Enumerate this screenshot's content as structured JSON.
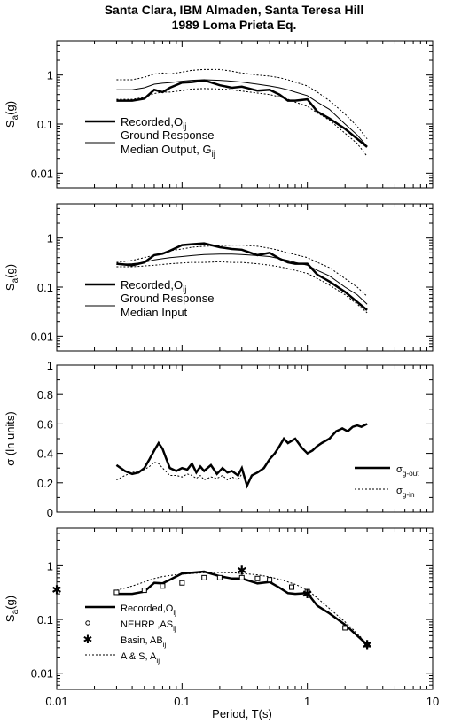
{
  "title_line1": "Santa Clara, IBM Almaden, Santa Teresa Hill",
  "title_line2": "1989 Loma Prieta Eq.",
  "shared_xlabel": "Period, T(s)",
  "chart_data": [
    {
      "type": "line",
      "xscale": "log",
      "yscale": "log",
      "xlim": [
        0.01,
        10
      ],
      "ylim": [
        0.005,
        5
      ],
      "x_ticks": [
        "0.01",
        "0.1",
        "1",
        "10"
      ],
      "y_ticks": [
        "0.01",
        "0.1",
        "1"
      ],
      "ylabel": "S",
      "ylabel_sub": "a",
      "ylabel_suffix": "(g)",
      "legend": {
        "placement": "lower-left",
        "items": [
          {
            "label": "Recorded,O",
            "sub": "ij",
            "style": "thick"
          },
          {
            "label": "Ground Response",
            "label2": "Median Output, G",
            "sub": "ij",
            "style": "thin"
          }
        ]
      },
      "series": [
        {
          "style": "thick",
          "x": [
            0.03,
            0.04,
            0.05,
            0.06,
            0.07,
            0.08,
            0.1,
            0.12,
            0.15,
            0.2,
            0.25,
            0.3,
            0.4,
            0.5,
            0.6,
            0.7,
            0.8,
            1.0,
            1.2,
            1.5,
            2.0,
            2.5,
            3.0
          ],
          "y": [
            0.3,
            0.3,
            0.33,
            0.5,
            0.45,
            0.55,
            0.7,
            0.72,
            0.78,
            0.62,
            0.55,
            0.58,
            0.48,
            0.5,
            0.4,
            0.3,
            0.3,
            0.32,
            0.18,
            0.13,
            0.08,
            0.05,
            0.034
          ]
        },
        {
          "style": "thin",
          "x": [
            0.03,
            0.04,
            0.05,
            0.06,
            0.07,
            0.08,
            0.1,
            0.12,
            0.15,
            0.2,
            0.25,
            0.3,
            0.4,
            0.5,
            0.6,
            0.7,
            0.8,
            1.0,
            1.2,
            1.5,
            2.0,
            2.5,
            3.0
          ],
          "y": [
            0.5,
            0.5,
            0.55,
            0.65,
            0.68,
            0.7,
            0.75,
            0.78,
            0.8,
            0.78,
            0.75,
            0.72,
            0.65,
            0.6,
            0.55,
            0.5,
            0.45,
            0.38,
            0.28,
            0.2,
            0.1,
            0.06,
            0.035
          ]
        },
        {
          "style": "dotted",
          "x": [
            0.03,
            0.04,
            0.05,
            0.06,
            0.07,
            0.08,
            0.1,
            0.12,
            0.15,
            0.2,
            0.25,
            0.3,
            0.4,
            0.5,
            0.6,
            0.7,
            0.8,
            1.0,
            1.2,
            1.5,
            2.0,
            2.5,
            3.0
          ],
          "y": [
            0.8,
            0.8,
            0.9,
            1.05,
            1.1,
            1.05,
            1.15,
            1.25,
            1.3,
            1.3,
            1.2,
            1.1,
            1.0,
            0.95,
            0.88,
            0.8,
            0.72,
            0.6,
            0.45,
            0.3,
            0.16,
            0.09,
            0.05
          ]
        },
        {
          "style": "dotted",
          "x": [
            0.03,
            0.04,
            0.05,
            0.06,
            0.07,
            0.08,
            0.1,
            0.12,
            0.15,
            0.2,
            0.25,
            0.3,
            0.4,
            0.5,
            0.6,
            0.7,
            0.8,
            1.0,
            1.2,
            1.5,
            2.0,
            2.5,
            3.0
          ],
          "y": [
            0.32,
            0.32,
            0.35,
            0.42,
            0.45,
            0.45,
            0.48,
            0.52,
            0.53,
            0.52,
            0.5,
            0.47,
            0.43,
            0.4,
            0.36,
            0.32,
            0.28,
            0.23,
            0.17,
            0.12,
            0.065,
            0.04,
            0.022
          ]
        }
      ]
    },
    {
      "type": "line",
      "xscale": "log",
      "yscale": "log",
      "xlim": [
        0.01,
        10
      ],
      "ylim": [
        0.005,
        5
      ],
      "x_ticks": [
        "0.01",
        "0.1",
        "1",
        "10"
      ],
      "y_ticks": [
        "0.01",
        "0.1",
        "1"
      ],
      "ylabel": "S",
      "ylabel_sub": "a",
      "ylabel_suffix": "(g)",
      "legend": {
        "placement": "lower-left",
        "items": [
          {
            "label": "Recorded,O",
            "sub": "ij",
            "style": "thick"
          },
          {
            "label": "Ground Response",
            "label2": "Median Input",
            "style": "thin"
          }
        ]
      },
      "series": [
        {
          "style": "thick",
          "x": [
            0.03,
            0.04,
            0.05,
            0.06,
            0.07,
            0.08,
            0.1,
            0.12,
            0.15,
            0.2,
            0.25,
            0.3,
            0.4,
            0.5,
            0.6,
            0.7,
            0.8,
            1.0,
            1.2,
            1.5,
            2.0,
            2.5,
            3.0
          ],
          "y": [
            0.3,
            0.28,
            0.32,
            0.45,
            0.48,
            0.55,
            0.72,
            0.75,
            0.78,
            0.65,
            0.6,
            0.58,
            0.45,
            0.5,
            0.38,
            0.32,
            0.3,
            0.3,
            0.18,
            0.13,
            0.08,
            0.05,
            0.034
          ]
        },
        {
          "style": "thin",
          "x": [
            0.03,
            0.04,
            0.05,
            0.06,
            0.07,
            0.08,
            0.1,
            0.12,
            0.15,
            0.2,
            0.25,
            0.3,
            0.4,
            0.5,
            0.6,
            0.7,
            0.8,
            1.0,
            1.2,
            1.5,
            2.0,
            2.5,
            3.0
          ],
          "y": [
            0.29,
            0.3,
            0.32,
            0.36,
            0.38,
            0.4,
            0.42,
            0.44,
            0.46,
            0.47,
            0.47,
            0.46,
            0.44,
            0.42,
            0.38,
            0.35,
            0.32,
            0.28,
            0.22,
            0.17,
            0.1,
            0.07,
            0.045
          ]
        },
        {
          "style": "dotted",
          "x": [
            0.03,
            0.04,
            0.05,
            0.06,
            0.07,
            0.08,
            0.1,
            0.12,
            0.15,
            0.2,
            0.25,
            0.3,
            0.4,
            0.5,
            0.6,
            0.7,
            0.8,
            1.0,
            1.2,
            1.5,
            2.0,
            2.5,
            3.0
          ],
          "y": [
            0.32,
            0.35,
            0.4,
            0.45,
            0.5,
            0.55,
            0.6,
            0.65,
            0.68,
            0.7,
            0.72,
            0.72,
            0.68,
            0.62,
            0.56,
            0.5,
            0.46,
            0.4,
            0.32,
            0.25,
            0.15,
            0.1,
            0.065
          ]
        },
        {
          "style": "dotted",
          "x": [
            0.03,
            0.04,
            0.05,
            0.06,
            0.07,
            0.08,
            0.1,
            0.12,
            0.15,
            0.2,
            0.25,
            0.3,
            0.4,
            0.5,
            0.6,
            0.7,
            0.8,
            1.0,
            1.2,
            1.5,
            2.0,
            2.5,
            3.0
          ],
          "y": [
            0.26,
            0.26,
            0.27,
            0.28,
            0.29,
            0.3,
            0.31,
            0.32,
            0.32,
            0.33,
            0.32,
            0.32,
            0.3,
            0.28,
            0.26,
            0.24,
            0.22,
            0.19,
            0.15,
            0.11,
            0.07,
            0.045,
            0.03
          ]
        }
      ]
    },
    {
      "type": "line",
      "xscale": "log",
      "yscale": "linear",
      "xlim": [
        0.01,
        10
      ],
      "ylim": [
        0,
        1
      ],
      "x_ticks": [
        "0.01",
        "0.1",
        "1",
        "10"
      ],
      "y_ticks": [
        "0",
        "0.2",
        "0.4",
        "0.6",
        "0.8",
        "1"
      ],
      "ylabel": "σ (ln units)",
      "legend": {
        "placement": "lower-right",
        "items": [
          {
            "label": "σ",
            "sub": "g-out",
            "style": "thick"
          },
          {
            "label": "σ",
            "sub": "g-in",
            "style": "dotted"
          }
        ]
      },
      "series": [
        {
          "style": "thick",
          "x": [
            0.03,
            0.035,
            0.04,
            0.045,
            0.05,
            0.055,
            0.06,
            0.065,
            0.07,
            0.075,
            0.08,
            0.09,
            0.1,
            0.11,
            0.12,
            0.13,
            0.14,
            0.15,
            0.17,
            0.19,
            0.21,
            0.23,
            0.25,
            0.28,
            0.3,
            0.33,
            0.36,
            0.4,
            0.45,
            0.5,
            0.55,
            0.6,
            0.65,
            0.7,
            0.8,
            0.9,
            1.0,
            1.1,
            1.2,
            1.3,
            1.5,
            1.7,
            1.9,
            2.1,
            2.3,
            2.5,
            2.7,
            3.0
          ],
          "y": [
            0.32,
            0.28,
            0.26,
            0.27,
            0.3,
            0.36,
            0.42,
            0.47,
            0.43,
            0.36,
            0.3,
            0.28,
            0.3,
            0.29,
            0.33,
            0.27,
            0.31,
            0.28,
            0.32,
            0.26,
            0.3,
            0.27,
            0.28,
            0.25,
            0.3,
            0.18,
            0.25,
            0.27,
            0.3,
            0.36,
            0.4,
            0.45,
            0.5,
            0.47,
            0.5,
            0.44,
            0.4,
            0.42,
            0.45,
            0.47,
            0.5,
            0.55,
            0.57,
            0.55,
            0.58,
            0.59,
            0.58,
            0.6
          ]
        },
        {
          "style": "dotted",
          "x": [
            0.03,
            0.035,
            0.04,
            0.045,
            0.05,
            0.055,
            0.06,
            0.065,
            0.07,
            0.08,
            0.09,
            0.1,
            0.11,
            0.12,
            0.13,
            0.14,
            0.15,
            0.17,
            0.19,
            0.21,
            0.23,
            0.25,
            0.28,
            0.3
          ],
          "y": [
            0.22,
            0.25,
            0.27,
            0.28,
            0.29,
            0.31,
            0.34,
            0.33,
            0.3,
            0.25,
            0.25,
            0.24,
            0.26,
            0.25,
            0.23,
            0.25,
            0.22,
            0.24,
            0.23,
            0.25,
            0.22,
            0.24,
            0.22,
            0.26
          ]
        }
      ]
    },
    {
      "type": "line",
      "xscale": "log",
      "yscale": "log",
      "xlim": [
        0.01,
        10
      ],
      "ylim": [
        0.005,
        5
      ],
      "x_ticks": [
        "0.01",
        "0.1",
        "1",
        "10"
      ],
      "y_ticks": [
        "0.01",
        "0.1",
        "1"
      ],
      "ylabel": "S",
      "ylabel_sub": "a",
      "ylabel_suffix": "(g)",
      "xlabel": "Period, T(s)",
      "legend": {
        "placement": "lower-left",
        "items": [
          {
            "label": "Recorded,O",
            "sub": "ij",
            "style": "thick"
          },
          {
            "label": "NEHRP ,AS",
            "sub": "ij",
            "style": "circle"
          },
          {
            "label": "Basin, AB",
            "sub": "ij",
            "style": "star"
          },
          {
            "label": "A & S, A",
            "sub": "ij",
            "style": "dotted"
          }
        ]
      },
      "series": [
        {
          "style": "thick",
          "x": [
            0.03,
            0.04,
            0.05,
            0.06,
            0.07,
            0.08,
            0.1,
            0.12,
            0.15,
            0.2,
            0.25,
            0.3,
            0.4,
            0.5,
            0.6,
            0.7,
            0.8,
            1.0,
            1.2,
            1.5,
            2.0,
            2.5,
            3.0
          ],
          "y": [
            0.3,
            0.3,
            0.33,
            0.48,
            0.47,
            0.55,
            0.72,
            0.74,
            0.78,
            0.64,
            0.58,
            0.58,
            0.47,
            0.5,
            0.39,
            0.31,
            0.3,
            0.31,
            0.18,
            0.13,
            0.08,
            0.05,
            0.034
          ]
        },
        {
          "style": "dotted",
          "x": [
            0.03,
            0.04,
            0.05,
            0.06,
            0.07,
            0.08,
            0.1,
            0.12,
            0.15,
            0.2,
            0.25,
            0.3,
            0.4,
            0.5,
            0.6,
            0.7,
            0.8,
            1.0,
            1.2,
            1.5,
            2.0,
            2.5,
            3.0
          ],
          "y": [
            0.35,
            0.42,
            0.5,
            0.58,
            0.63,
            0.66,
            0.7,
            0.72,
            0.74,
            0.75,
            0.74,
            0.72,
            0.68,
            0.62,
            0.56,
            0.5,
            0.45,
            0.36,
            0.25,
            0.16,
            0.09,
            0.055,
            0.035
          ]
        },
        {
          "style": "square",
          "x": [
            0.03,
            0.05,
            0.07,
            0.1,
            0.15,
            0.2,
            0.3,
            0.4,
            0.5,
            0.75,
            1.0,
            2.0,
            3.0
          ],
          "y": [
            0.32,
            0.35,
            0.42,
            0.48,
            0.6,
            0.6,
            0.6,
            0.58,
            0.55,
            0.4,
            0.33,
            0.07,
            0.034
          ]
        },
        {
          "style": "star",
          "x": [
            0.01,
            0.3,
            1.0,
            3.0
          ],
          "y": [
            0.36,
            0.82,
            0.3,
            0.034
          ]
        }
      ]
    }
  ]
}
